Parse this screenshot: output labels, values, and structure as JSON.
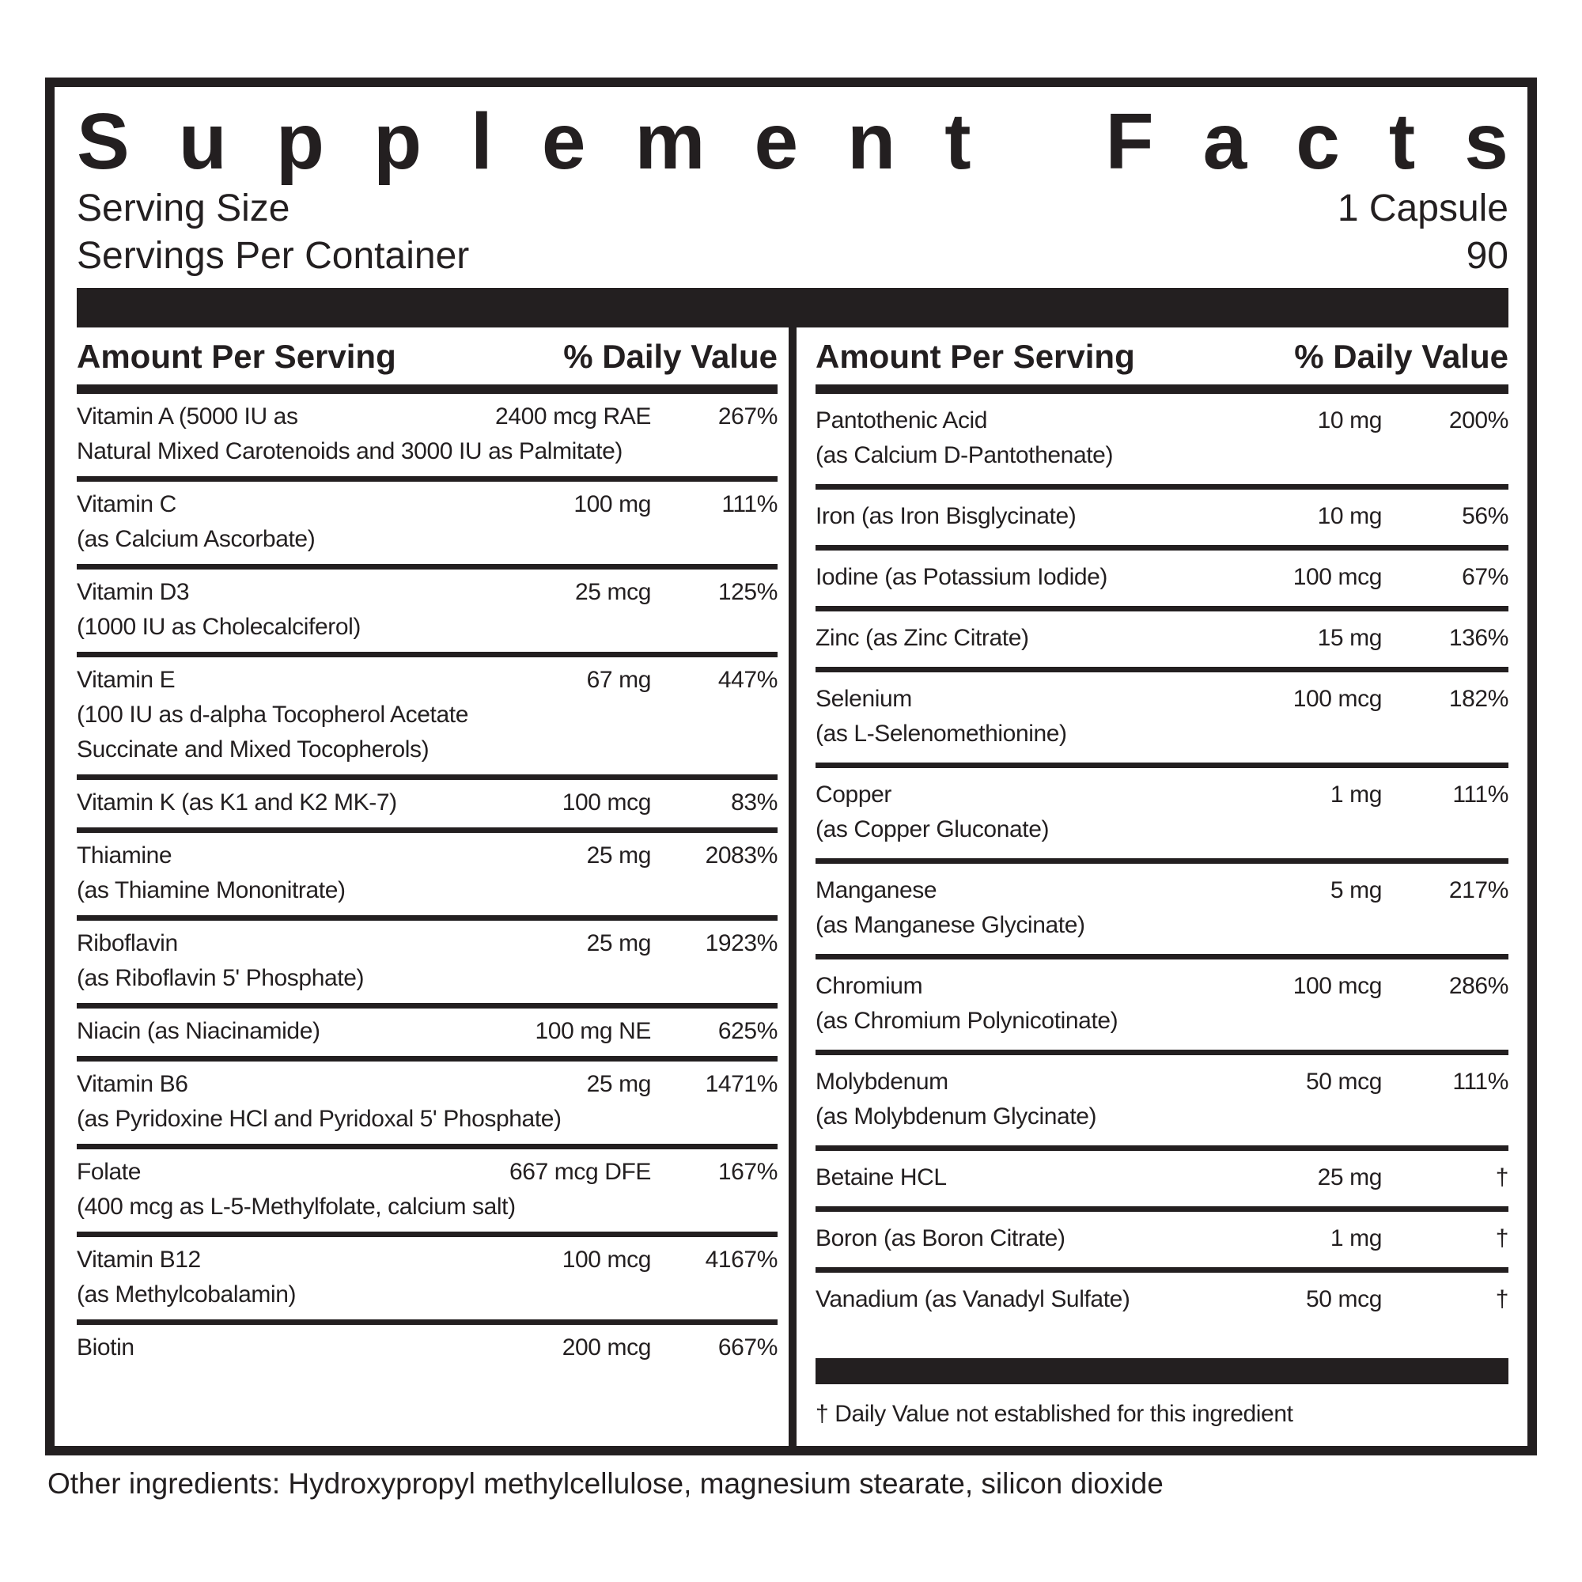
{
  "colors": {
    "ink": "#231f20",
    "background": "#ffffff"
  },
  "title": "Supplement Facts",
  "serving_info": {
    "size_label": "Serving Size",
    "size_value": "1 Capsule",
    "per_container_label": "Servings Per Container",
    "per_container_value": "90"
  },
  "table_header": {
    "amount": "Amount Per Serving",
    "dv": "% Daily Value"
  },
  "left_column_rows": [
    {
      "name": "Vitamin A (5000 IU as",
      "amount": "2400 mcg RAE",
      "dv": "267%",
      "sub": "Natural Mixed Carotenoids and 3000 IU as Palmitate)"
    },
    {
      "name": "Vitamin C",
      "amount": "100 mg",
      "dv": "111%",
      "sub": "(as Calcium Ascorbate)"
    },
    {
      "name": "Vitamin D3",
      "amount": "25 mcg",
      "dv": "125%",
      "sub": "(1000 IU as Cholecalciferol)"
    },
    {
      "name": "Vitamin E",
      "amount": "67 mg",
      "dv": "447%",
      "sub": "(100 IU as d-alpha Tocopherol Acetate\nSuccinate and Mixed Tocopherols)"
    },
    {
      "name": "Vitamin K (as K1 and K2 MK-7)",
      "amount": "100 mcg",
      "dv": "83%"
    },
    {
      "name": "Thiamine",
      "amount": "25 mg",
      "dv": "2083%",
      "sub": "(as Thiamine Mononitrate)"
    },
    {
      "name": "Riboflavin",
      "amount": "25 mg",
      "dv": "1923%",
      "sub": "(as Riboflavin 5' Phosphate)"
    },
    {
      "name": "Niacin (as Niacinamide)",
      "amount": "100 mg NE",
      "dv": "625%"
    },
    {
      "name": "Vitamin B6",
      "amount": "25 mg",
      "dv": "1471%",
      "sub": "(as Pyridoxine HCl and Pyridoxal 5' Phosphate)"
    },
    {
      "name": "Folate",
      "amount": "667 mcg DFE",
      "dv": "167%",
      "sub": "(400 mcg as L-5-Methylfolate, calcium salt)"
    },
    {
      "name": "Vitamin B12",
      "amount": "100 mcg",
      "dv": "4167%",
      "sub": "(as Methylcobalamin)"
    },
    {
      "name": "Biotin",
      "amount": "200 mcg",
      "dv": "667%"
    }
  ],
  "right_column_rows": [
    {
      "name": "Pantothenic Acid",
      "amount": "10 mg",
      "dv": "200%",
      "sub": "(as Calcium D-Pantothenate)"
    },
    {
      "name": "Iron (as Iron Bisglycinate)",
      "amount": "10 mg",
      "dv": "56%"
    },
    {
      "name": "Iodine (as Potassium Iodide)",
      "amount": "100 mcg",
      "dv": "67%"
    },
    {
      "name": "Zinc (as Zinc Citrate)",
      "amount": "15 mg",
      "dv": "136%"
    },
    {
      "name": "Selenium",
      "amount": "100 mcg",
      "dv": "182%",
      "sub": "(as L-Selenomethionine)"
    },
    {
      "name": "Copper",
      "amount": "1 mg",
      "dv": "111%",
      "sub": "(as Copper Gluconate)"
    },
    {
      "name": "Manganese",
      "amount": "5 mg",
      "dv": "217%",
      "sub": "(as Manganese Glycinate)"
    },
    {
      "name": "Chromium",
      "amount": "100 mcg",
      "dv": "286%",
      "sub": "(as Chromium Polynicotinate)"
    },
    {
      "name": "Molybdenum",
      "amount": "50 mcg",
      "dv": "111%",
      "sub": "(as Molybdenum Glycinate)"
    },
    {
      "name": "Betaine HCL",
      "amount": "25 mg",
      "dv": "†"
    },
    {
      "name": "Boron (as Boron Citrate)",
      "amount": "1 mg",
      "dv": "†"
    },
    {
      "name": "Vanadium (as Vanadyl Sulfate)",
      "amount": "50 mcg",
      "dv": "†"
    }
  ],
  "footnote": "† Daily Value not established for this ingredient",
  "other_ingredients": "Other ingredients: Hydroxypropyl methylcellulose, magnesium stearate, silicon dioxide"
}
